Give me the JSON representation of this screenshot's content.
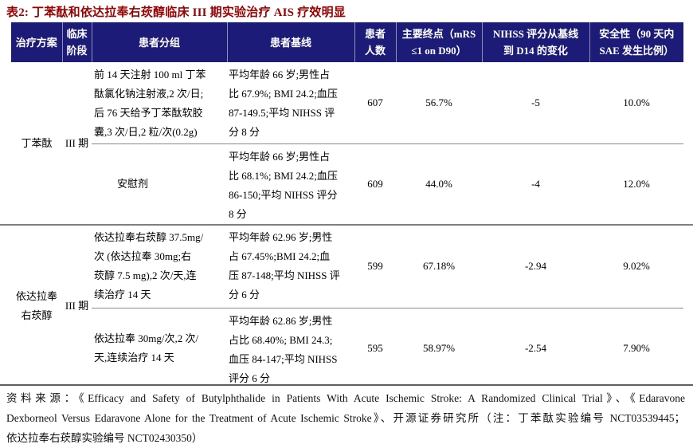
{
  "title": "表2: 丁苯酞和依达拉奉右莰醇临床 III 期实验治疗 AIS 疗效明显",
  "colors": {
    "title": "#990000",
    "header_bg": "#1c1c78",
    "header_text": "#ffffff",
    "rule_gray": "#7f7f7f"
  },
  "columns": {
    "c1": [
      "治疗方案"
    ],
    "c2": [
      "临床",
      "阶段"
    ],
    "c3": [
      "患者分组"
    ],
    "c4": [
      "患者基线"
    ],
    "c5": [
      "患者",
      "人数"
    ],
    "c6": [
      "主要终点（mRS",
      "≤1 on D90）"
    ],
    "c7": [
      "NIHSS 评分从基线",
      "到 D14 的变化"
    ],
    "c8": [
      "安全性（90 天内",
      "SAE 发生比例）"
    ]
  },
  "groups": [
    {
      "scheme": [
        "丁苯酞"
      ],
      "stage": "III 期",
      "rows": [
        {
          "group": [
            "前 14 天注射 100 ml 丁苯",
            "酞氯化钠注射液,2 次/日;",
            "后 76 天给予丁苯酞软胶",
            "囊,3 次/日,2 粒/次(0.2g)"
          ],
          "baseline": [
            "平均年龄 66 岁;男性占",
            "比 67.9%; BMI 24.2;血压",
            "87-149.5;平均 NIHSS 评",
            "分 8 分"
          ],
          "n": "607",
          "endpoint": "56.7%",
          "nihss": "-5",
          "safety": "10.0%"
        },
        {
          "group": [
            "安慰剂"
          ],
          "baseline": [
            "平均年龄 66 岁;男性占",
            "比 68.1%; BMI 24.2;血压",
            "86-150;平均 NIHSS 评分",
            "8 分"
          ],
          "n": "609",
          "endpoint": "44.0%",
          "nihss": "-4",
          "safety": "12.0%"
        }
      ]
    },
    {
      "scheme": [
        "依达拉奉",
        "右莰醇"
      ],
      "stage": "III 期",
      "rows": [
        {
          "group": [
            "依达拉奉右莰醇 37.5mg/",
            "次 (依达拉奉 30mg;右",
            "莰醇 7.5 mg),2 次/天,连",
            "续治疗 14 天"
          ],
          "baseline": [
            "平均年龄 62.96 岁;男性",
            "占 67.45%;BMI 24.2;血",
            "压 87-148;平均 NIHSS 评",
            "分 6 分"
          ],
          "n": "599",
          "endpoint": "67.18%",
          "nihss": "-2.94",
          "safety": "9.02%"
        },
        {
          "group": [
            "依达拉奉 30mg/次,2 次/",
            "天,连续治疗 14 天"
          ],
          "baseline": [
            "平均年龄 62.86 岁;男性",
            "占比 68.40%; BMI 24.3;",
            "血压 84-147;平均 NIHSS",
            "评分 6 分"
          ],
          "n": "595",
          "endpoint": "58.97%",
          "nihss": "-2.54",
          "safety": "7.90%"
        }
      ]
    }
  ],
  "source": {
    "lines": [
      "资料来源：《Efficacy and Safety of Butylphthalide in Patients With Acute Ischemic Stroke: A Randomized Clinical Trial》、《Edaravone",
      "Dexborneol Versus Edaravone Alone for the Treatment of Acute Ischemic Stroke》、开源证券研究所（注：丁苯酞实验编号 NCT03539445；",
      "依达拉奉右莰醇实验编号 NCT02430350）"
    ]
  }
}
